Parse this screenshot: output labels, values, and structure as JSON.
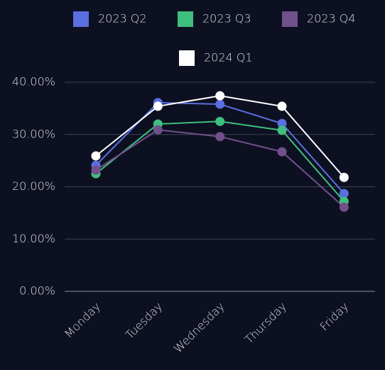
{
  "chart_data": {
    "type": "line",
    "categories": [
      "Monday",
      "Tuesday",
      "Wednesday",
      "Thursday",
      "Friday"
    ],
    "series": [
      {
        "name": "2023 Q2",
        "color": "#5a6fe0",
        "values": [
          24.1,
          36.1,
          35.8,
          32.1,
          18.7
        ]
      },
      {
        "name": "2023 Q3",
        "color": "#3ebf7e",
        "values": [
          22.5,
          32.0,
          32.5,
          30.8,
          17.2
        ]
      },
      {
        "name": "2023 Q4",
        "color": "#71508c",
        "values": [
          23.2,
          30.9,
          29.6,
          26.7,
          16.1
        ]
      },
      {
        "name": "2024 Q1",
        "color": "#ffffff",
        "values": [
          25.9,
          35.4,
          37.4,
          35.4,
          21.8
        ]
      }
    ],
    "ylim": [
      0,
      40
    ],
    "yticks": [
      {
        "value": 0,
        "label": "0.00%"
      },
      {
        "value": 10,
        "label": "10.00%"
      },
      {
        "value": 20,
        "label": "20.00%"
      },
      {
        "value": 30,
        "label": "30.00%"
      },
      {
        "value": 40,
        "label": "40.00%"
      }
    ],
    "grid": true,
    "legend": "top"
  }
}
